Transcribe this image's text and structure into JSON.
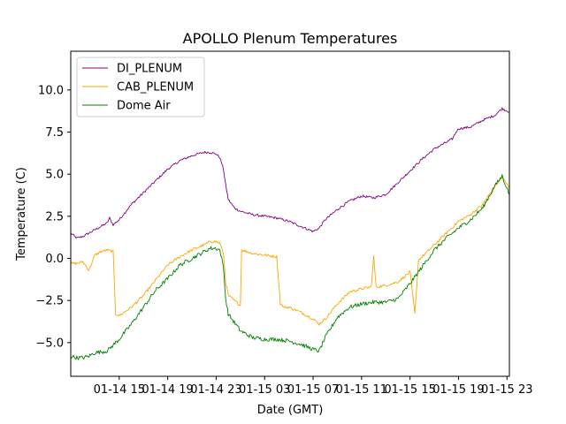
{
  "chart_data": {
    "type": "line",
    "title": "APOLLO Plenum Temperatures",
    "xlabel": "Date (GMT)",
    "ylabel": "Temperature (C)",
    "x_unit": "hours since 01-14 11:00 GMT",
    "xlim": [
      0,
      36.2
    ],
    "ylim": [
      -7.0,
      12.3
    ],
    "x_ticks": [
      {
        "value": 4,
        "label": "01-14 15"
      },
      {
        "value": 8,
        "label": "01-14 19"
      },
      {
        "value": 12,
        "label": "01-14 23"
      },
      {
        "value": 16,
        "label": "01-15 03"
      },
      {
        "value": 20,
        "label": "01-15 07"
      },
      {
        "value": 24,
        "label": "01-15 11"
      },
      {
        "value": 28,
        "label": "01-15 15"
      },
      {
        "value": 32,
        "label": "01-15 19"
      },
      {
        "value": 36,
        "label": "01-15 23"
      }
    ],
    "y_ticks": [
      {
        "value": -5.0,
        "label": "−5.0"
      },
      {
        "value": -2.5,
        "label": "−2.5"
      },
      {
        "value": 0.0,
        "label": "0.0"
      },
      {
        "value": 2.5,
        "label": "2.5"
      },
      {
        "value": 5.0,
        "label": "5.0"
      },
      {
        "value": 7.5,
        "label": "7.5"
      },
      {
        "value": 10.0,
        "label": "10.0"
      }
    ],
    "grid": false,
    "legend_position": "top-left",
    "series": [
      {
        "name": "DI_PLENUM",
        "color": "#800080",
        "x": [
          0,
          0.5,
          1.0,
          1.5,
          2.0,
          2.5,
          3.0,
          3.2,
          3.5,
          4.0,
          5.0,
          6.0,
          7.0,
          8.0,
          9.0,
          10.0,
          11.0,
          11.5,
          12.0,
          12.3,
          12.6,
          12.8,
          13.0,
          13.5,
          14.0,
          15.0,
          16.0,
          17.0,
          18.0,
          19.0,
          20.0,
          20.5,
          21.0,
          22.0,
          23.0,
          24.0,
          25.0,
          26.0,
          27.0,
          28.0,
          29.0,
          30.0,
          31.0,
          31.5,
          31.8,
          32.0,
          33.0,
          34.0,
          35.0,
          35.6,
          36.2
        ],
        "values": [
          1.5,
          1.2,
          1.3,
          1.5,
          1.7,
          1.9,
          2.1,
          2.4,
          2.0,
          2.3,
          3.2,
          3.9,
          4.6,
          5.3,
          5.8,
          6.1,
          6.3,
          6.3,
          6.2,
          6.0,
          5.3,
          4.3,
          3.5,
          3.0,
          2.8,
          2.6,
          2.5,
          2.4,
          2.2,
          1.9,
          1.6,
          1.8,
          2.3,
          2.9,
          3.4,
          3.7,
          3.6,
          3.8,
          4.5,
          5.2,
          5.9,
          6.5,
          6.9,
          7.1,
          7.5,
          7.7,
          7.8,
          8.2,
          8.5,
          8.9,
          8.7
        ]
      },
      {
        "name": "CAB_PLENUM",
        "color": "#FFA500",
        "x": [
          0,
          0.5,
          1.0,
          1.5,
          2.0,
          2.5,
          3.0,
          3.5,
          3.7,
          4.0,
          5.0,
          6.0,
          7.0,
          8.0,
          9.0,
          10.0,
          11.0,
          11.5,
          12.0,
          12.3,
          12.6,
          12.8,
          13.0,
          13.5,
          14.0,
          14.1,
          15.0,
          16.0,
          17.0,
          17.3,
          17.6,
          18.0,
          19.0,
          20.0,
          20.5,
          21.0,
          22.0,
          23.0,
          24.0,
          24.8,
          25.0,
          25.2,
          26.0,
          27.0,
          28.0,
          28.4,
          28.7,
          29.0,
          30.0,
          31.0,
          32.0,
          33.0,
          34.0,
          35.0,
          35.6,
          36.2
        ],
        "values": [
          -0.3,
          -0.3,
          -0.2,
          -0.7,
          0.2,
          0.4,
          0.5,
          0.4,
          -3.3,
          -3.4,
          -2.9,
          -2.2,
          -1.3,
          -0.4,
          0.1,
          0.5,
          0.8,
          1.0,
          1.0,
          0.9,
          0.3,
          -1.5,
          -2.2,
          -2.5,
          -2.8,
          0.5,
          0.3,
          0.2,
          0.1,
          -2.7,
          -2.9,
          -2.9,
          -3.2,
          -3.6,
          -3.9,
          -3.6,
          -2.7,
          -2.0,
          -1.8,
          -1.7,
          0.1,
          -1.7,
          -1.6,
          -1.4,
          -0.8,
          -3.3,
          -0.1,
          0.1,
          0.8,
          1.5,
          2.2,
          2.6,
          3.2,
          4.3,
          4.8,
          4.2
        ]
      },
      {
        "name": "Dome Air",
        "color": "#008000",
        "x": [
          0,
          0.5,
          1.0,
          1.5,
          2.0,
          3.0,
          4.0,
          5.0,
          6.0,
          7.0,
          8.0,
          9.0,
          10.0,
          11.0,
          11.5,
          12.0,
          12.3,
          12.6,
          12.8,
          13.0,
          13.5,
          14.0,
          14.5,
          15.0,
          16.0,
          17.0,
          18.0,
          19.0,
          20.0,
          20.5,
          21.0,
          22.0,
          23.0,
          24.0,
          25.0,
          26.0,
          27.0,
          28.0,
          29.0,
          30.0,
          31.0,
          32.0,
          33.0,
          34.0,
          35.0,
          35.6,
          36.2
        ],
        "values": [
          -5.8,
          -5.9,
          -5.9,
          -5.8,
          -5.6,
          -5.5,
          -4.8,
          -3.9,
          -2.9,
          -1.9,
          -1.2,
          -0.4,
          0.0,
          0.4,
          0.6,
          0.6,
          0.5,
          -0.5,
          -2.5,
          -3.3,
          -3.8,
          -4.3,
          -4.5,
          -4.7,
          -4.8,
          -4.8,
          -4.9,
          -5.1,
          -5.4,
          -5.5,
          -4.7,
          -3.5,
          -2.9,
          -2.7,
          -2.6,
          -2.6,
          -2.4,
          -1.5,
          -0.5,
          0.5,
          1.2,
          1.8,
          2.3,
          3.0,
          4.3,
          4.9,
          3.8
        ]
      }
    ]
  }
}
